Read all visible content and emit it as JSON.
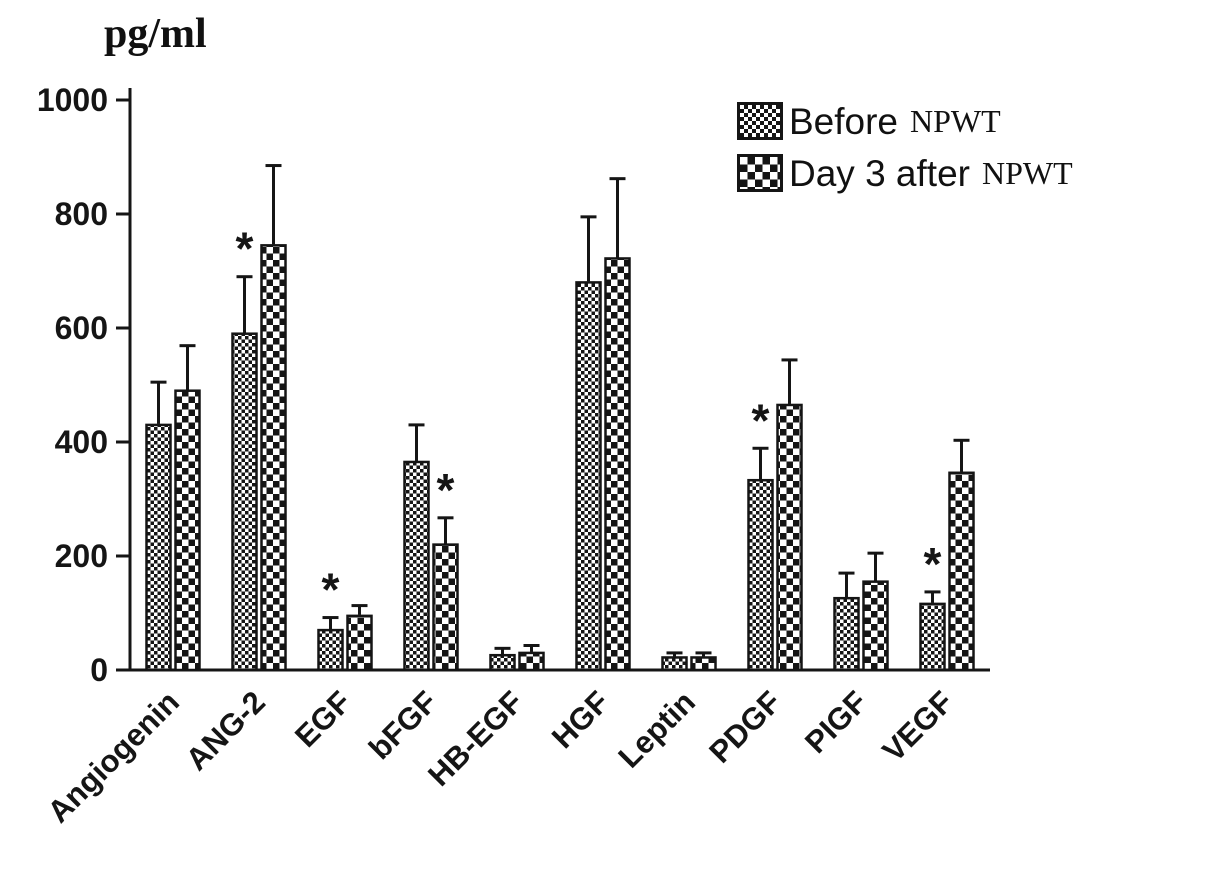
{
  "figure": {
    "unit_label": "pg/ml"
  },
  "legend": {
    "items": [
      {
        "label": "Before",
        "suffix": "NPWT"
      },
      {
        "label": "Day 3 after",
        "suffix": "NPWT"
      }
    ]
  },
  "chart_data": {
    "type": "bar",
    "title": "",
    "xlabel": "",
    "ylabel": "pg/ml",
    "ylim": [
      0,
      1000
    ],
    "yticks": [
      0,
      200,
      400,
      600,
      800,
      1000
    ],
    "grid": false,
    "legend_position": "top-right",
    "error_bars": "upper",
    "bar_color": "#151515",
    "categories": [
      "Angiogenin",
      "ANG-2",
      "EGF",
      "bFGF",
      "HB-EGF",
      "HGF",
      "Leptin",
      "PDGF",
      "PIGF",
      "VEGF"
    ],
    "series": [
      {
        "name": "Before NPWT",
        "pattern": "fine-checker",
        "values": [
          430,
          590,
          70,
          365,
          26,
          680,
          22,
          333,
          126,
          116
        ],
        "errors": [
          75,
          100,
          22,
          65,
          12,
          115,
          8,
          56,
          44,
          21
        ]
      },
      {
        "name": "Day 3 after NPWT",
        "pattern": "coarse-checker",
        "values": [
          490,
          745,
          95,
          220,
          30,
          722,
          22,
          465,
          155,
          346
        ],
        "errors": [
          79,
          140,
          18,
          47,
          13,
          140,
          8,
          79,
          50,
          57
        ]
      }
    ],
    "annotations": [
      {
        "category": "ANG-2",
        "series": 0,
        "label": "*"
      },
      {
        "category": "EGF",
        "series": 0,
        "label": "*"
      },
      {
        "category": "bFGF",
        "series": 1,
        "label": "*"
      },
      {
        "category": "PDGF",
        "series": 0,
        "label": "*"
      },
      {
        "category": "VEGF",
        "series": 0,
        "label": "*"
      }
    ]
  }
}
